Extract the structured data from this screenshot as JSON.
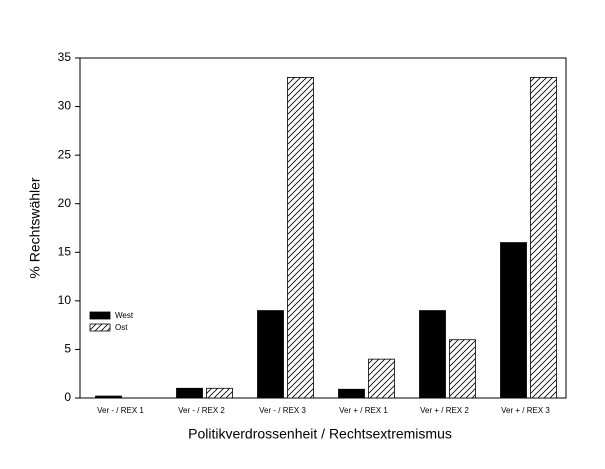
{
  "chart_data": {
    "type": "bar",
    "x_label": "Politikverdrossenheit / Rechtsextremismus",
    "y_label": "% Rechtswähler",
    "categories": [
      "Ver - / REX 1",
      "Ver - / REX 2",
      "Ver - / REX 3",
      "Ver + / REX 1",
      "Ver + / REX 2",
      "Ver + / REX 3"
    ],
    "series": [
      {
        "name": "West",
        "color": "#000000",
        "hatch": false,
        "values": [
          0.2,
          1,
          9,
          0.9,
          9,
          16
        ]
      },
      {
        "name": "Ost",
        "color": "#ffffff",
        "hatch": true,
        "values": [
          0,
          1,
          33,
          4,
          6,
          33
        ]
      }
    ],
    "ylim": [
      0,
      35
    ],
    "yticks": [
      0,
      5,
      10,
      15,
      20,
      25,
      30,
      35
    ],
    "legend": "left"
  }
}
